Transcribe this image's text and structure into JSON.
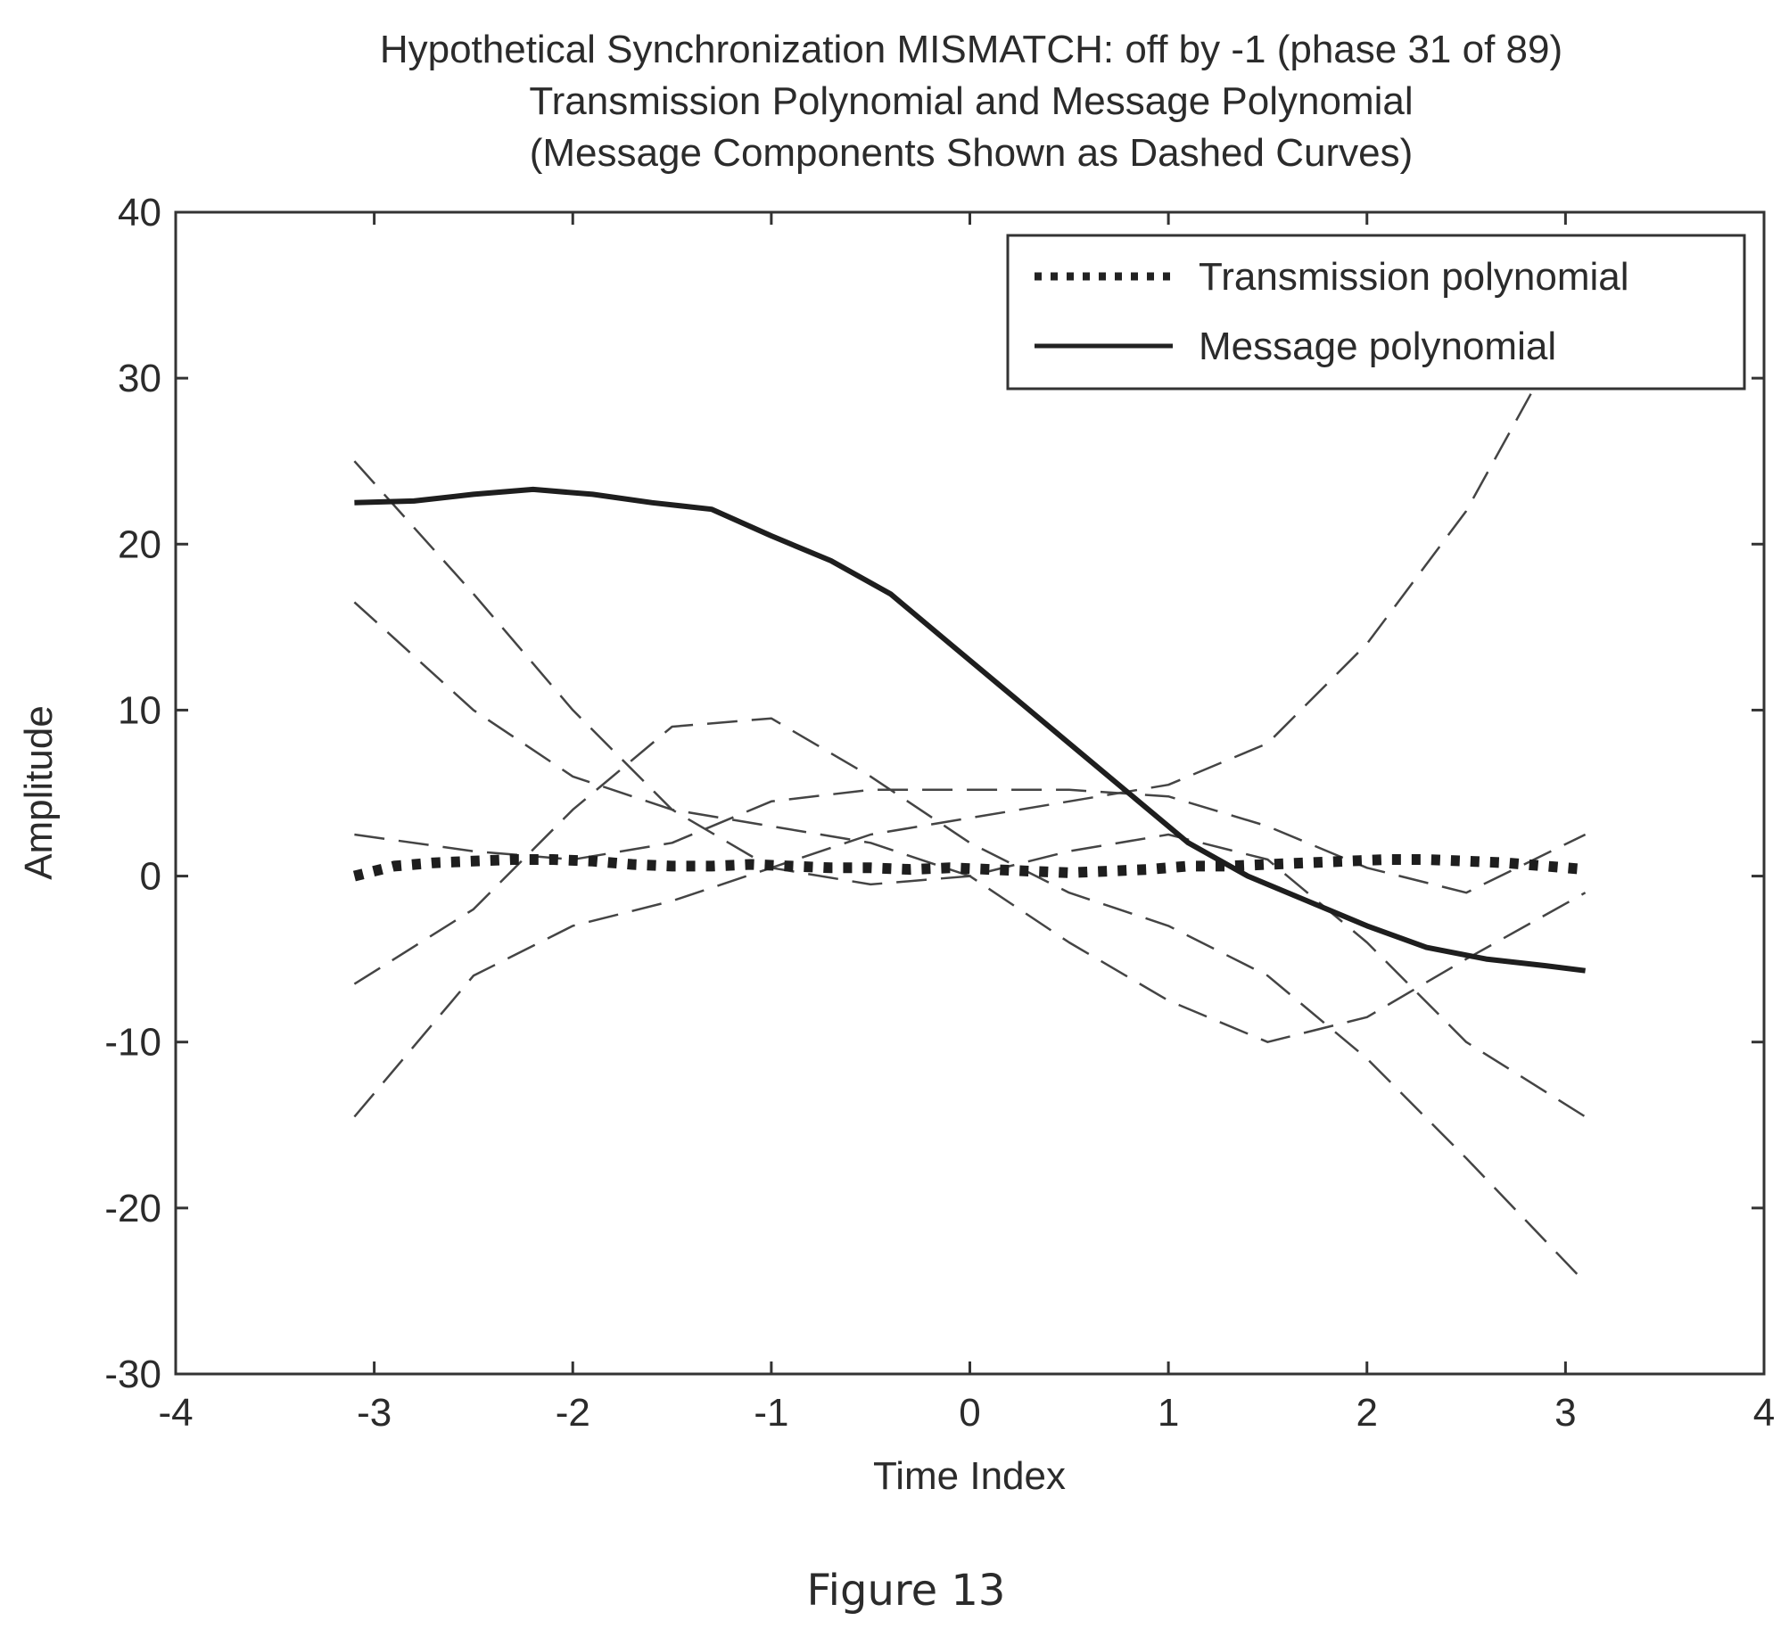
{
  "chart_data": {
    "type": "line",
    "title": [
      "Hypothetical Synchronization MISMATCH: off by -1 (phase 31 of 89)",
      "Transmission Polynomial and Message Polynomial",
      "(Message Components Shown as Dashed Curves)"
    ],
    "xlabel": "Time Index",
    "ylabel": "Amplitude",
    "xlim": [
      -4,
      4
    ],
    "ylim": [
      -30,
      40
    ],
    "xticks": [
      -4,
      -3,
      -2,
      -1,
      0,
      1,
      2,
      3,
      4
    ],
    "yticks": [
      -30,
      -20,
      -10,
      0,
      10,
      20,
      30,
      40
    ],
    "grid": false,
    "legend_position": "top-right",
    "legend": [
      "Transmission polynomial",
      "Message polynomial"
    ],
    "caption": "Figure 13",
    "series": [
      {
        "name": "Transmission polynomial",
        "style": "dotted",
        "x": [
          -3.1,
          -2.9,
          -2.7,
          -2.5,
          -2.3,
          -2.1,
          -1.9,
          -1.7,
          -1.5,
          -1.3,
          -1.1,
          -0.9,
          -0.7,
          -0.5,
          -0.3,
          -0.1,
          0.1,
          0.3,
          0.5,
          0.7,
          0.9,
          1.1,
          1.3,
          1.5,
          1.7,
          1.9,
          2.1,
          2.3,
          2.5,
          2.7,
          2.9,
          3.1
        ],
        "y": [
          0,
          0.6,
          0.8,
          0.9,
          1.0,
          1.0,
          0.9,
          0.7,
          0.6,
          0.6,
          0.7,
          0.6,
          0.5,
          0.5,
          0.4,
          0.5,
          0.4,
          0.3,
          0.2,
          0.3,
          0.4,
          0.6,
          0.6,
          0.7,
          0.8,
          0.9,
          1.0,
          1.0,
          0.9,
          0.8,
          0.6,
          0.4
        ]
      },
      {
        "name": "Message polynomial",
        "style": "solid",
        "x": [
          -3.1,
          -2.8,
          -2.5,
          -2.2,
          -1.9,
          -1.6,
          -1.3,
          -1.0,
          -0.7,
          -0.4,
          -0.1,
          0.2,
          0.5,
          0.8,
          1.1,
          1.4,
          1.7,
          2.0,
          2.3,
          2.6,
          2.9,
          3.1
        ],
        "y": [
          22.5,
          22.6,
          23.0,
          23.3,
          23.0,
          22.5,
          22.1,
          20.5,
          19.0,
          17.0,
          14.0,
          11.0,
          8.0,
          5.0,
          2.0,
          0.0,
          -1.5,
          -3.0,
          -4.3,
          -5.0,
          -5.4,
          -5.7
        ]
      },
      {
        "style": "dashed",
        "x": [
          -3.1,
          -2.5,
          -2.0,
          -1.5,
          -1.0,
          -0.5,
          0.0,
          0.5,
          1.0,
          1.5,
          2.0,
          2.5,
          3.1
        ],
        "y": [
          25.0,
          17.0,
          10.0,
          4.0,
          0.5,
          -0.5,
          0.0,
          1.5,
          2.5,
          1.0,
          -4.0,
          -10.0,
          -14.5
        ]
      },
      {
        "style": "dashed",
        "x": [
          -3.1,
          -2.5,
          -2.0,
          -1.5,
          -1.0,
          -0.5,
          0.0,
          0.5,
          1.0,
          1.5,
          2.0,
          2.5,
          3.1
        ],
        "y": [
          16.5,
          10.0,
          6.0,
          4.0,
          3.0,
          2.0,
          0.0,
          -4.0,
          -7.5,
          -10.0,
          -8.5,
          -5.0,
          -1.0
        ]
      },
      {
        "style": "dashed",
        "x": [
          -3.1,
          -2.5,
          -2.0,
          -1.5,
          -1.0,
          -0.5,
          0.0,
          0.5,
          1.0,
          1.5,
          2.0,
          2.5,
          3.1
        ],
        "y": [
          -14.5,
          -6.0,
          -3.0,
          -1.5,
          0.5,
          2.5,
          3.5,
          4.5,
          5.5,
          8.0,
          14.0,
          22.0,
          35.0
        ]
      },
      {
        "style": "dashed",
        "x": [
          -3.1,
          -2.5,
          -2.0,
          -1.5,
          -1.0,
          -0.5,
          0.0,
          0.5,
          1.0,
          1.5,
          2.0,
          2.5,
          3.1
        ],
        "y": [
          -6.5,
          -2.0,
          4.0,
          9.0,
          9.5,
          6.0,
          2.0,
          -1.0,
          -3.0,
          -6.0,
          -11.0,
          -17.0,
          -24.5
        ]
      },
      {
        "style": "dashed",
        "x": [
          -3.1,
          -2.5,
          -2.0,
          -1.5,
          -1.0,
          -0.5,
          0.0,
          0.5,
          1.0,
          1.5,
          2.0,
          2.5,
          3.1
        ],
        "y": [
          2.5,
          1.5,
          1.0,
          2.0,
          4.5,
          5.2,
          5.2,
          5.2,
          4.8,
          3.0,
          0.5,
          -1.0,
          2.5
        ]
      }
    ]
  }
}
